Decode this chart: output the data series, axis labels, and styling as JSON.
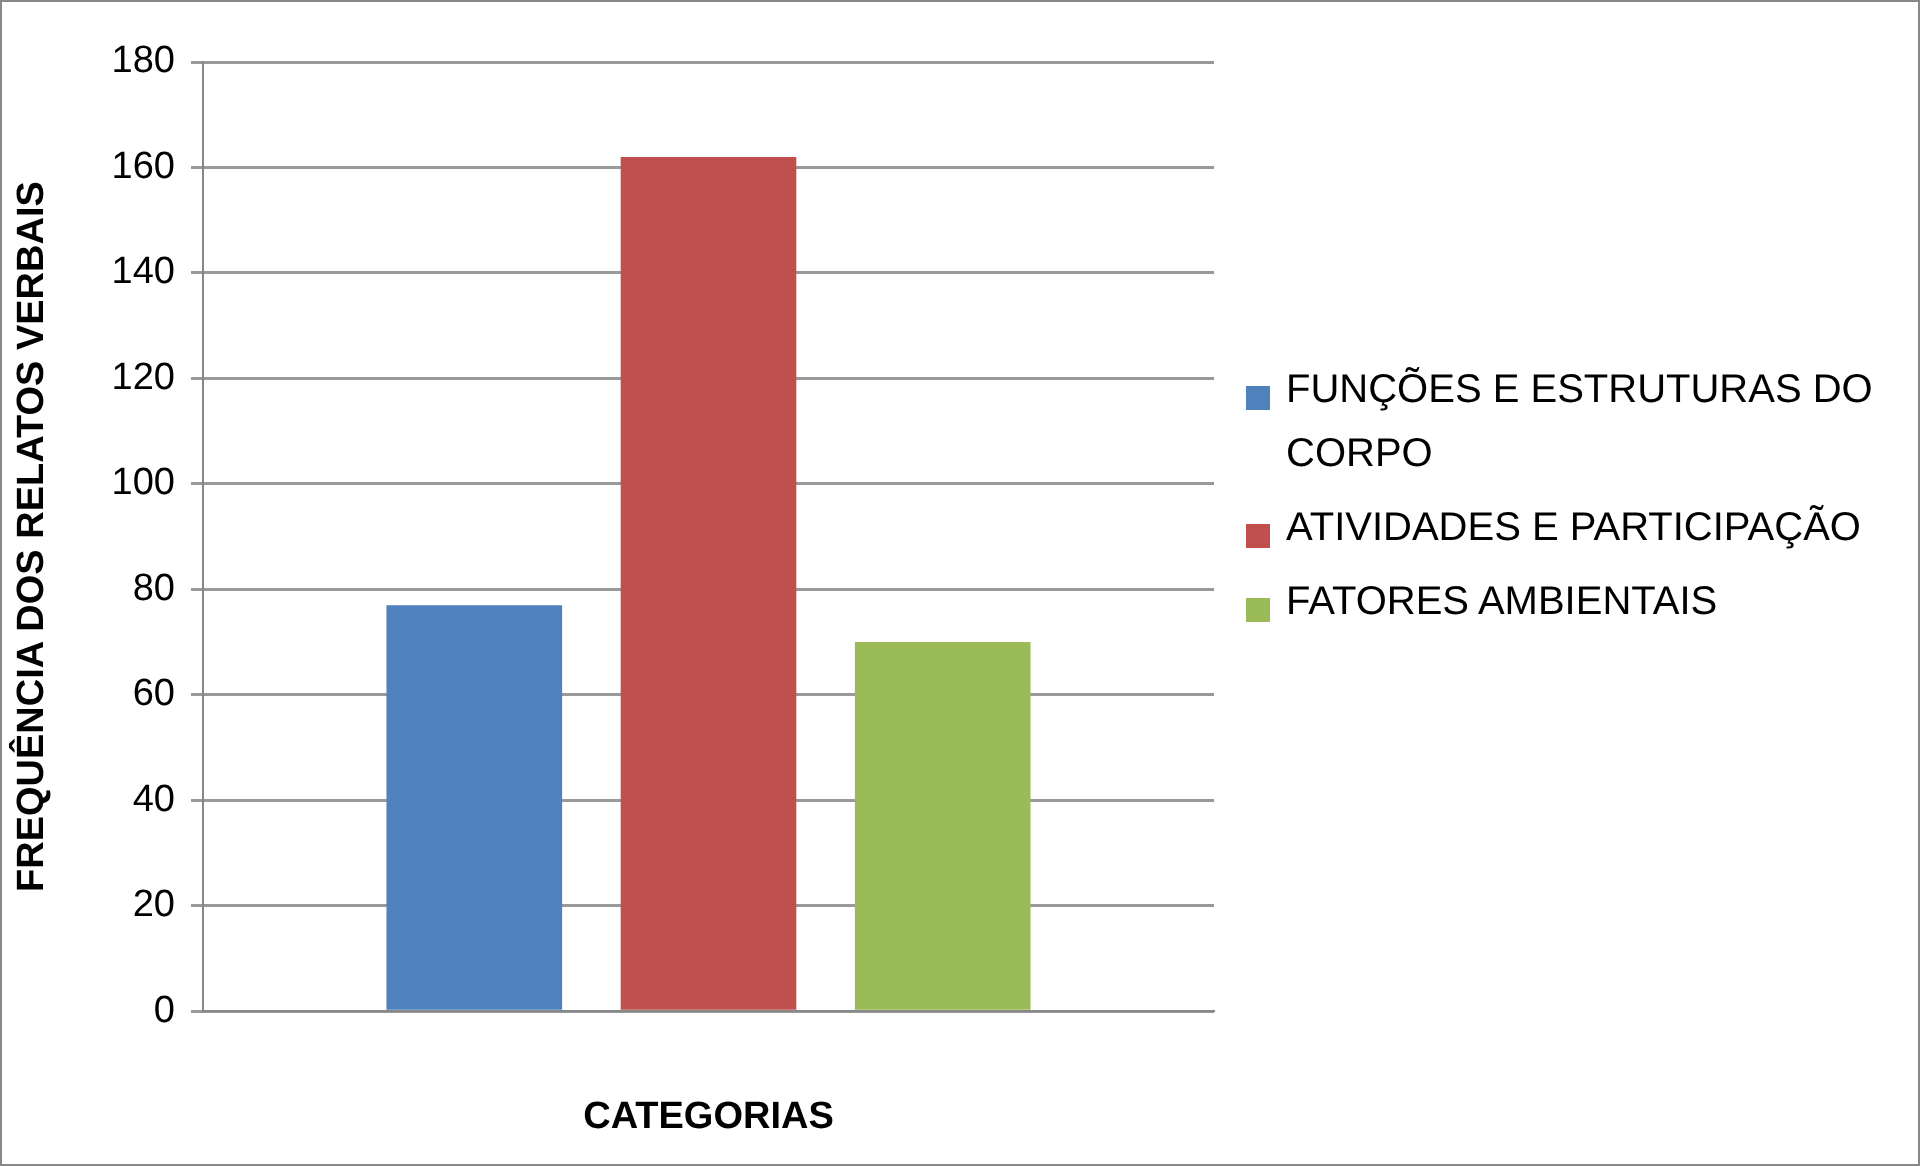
{
  "chart_data": {
    "type": "bar",
    "xlabel": "CATEGORIAS",
    "ylabel": "FREQUÊNCIA DOS RELATOS VERBAIS",
    "categories": [
      null
    ],
    "series": [
      {
        "name": "FUNÇÕES E ESTRUTURAS DO CORPO",
        "color": "#4f81bd",
        "values": [
          77
        ]
      },
      {
        "name": "ATIVIDADES E PARTICIPAÇÃO",
        "color": "#c0504d",
        "values": [
          162
        ]
      },
      {
        "name": "FATORES AMBIENTAIS",
        "color": "#9bbb59",
        "values": [
          70
        ]
      }
    ],
    "ylim": [
      0,
      180
    ],
    "yticks": [
      0,
      20,
      40,
      60,
      80,
      100,
      120,
      140,
      160,
      180
    ],
    "grid": "y",
    "legend": "right"
  }
}
